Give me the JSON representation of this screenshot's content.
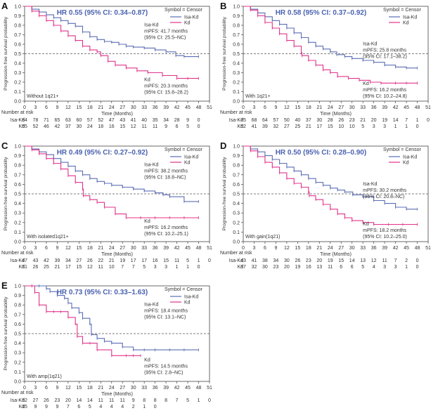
{
  "figure": {
    "risk_header": "Number at risk",
    "time_label": "Time (Months)",
    "y_label": "Progression-free survival probability",
    "symbol_label": "Symbol = Censor"
  },
  "colors": {
    "isa": "#5b6db4",
    "kd": "#e0338a",
    "hr": "#4a62b0",
    "ref": "#555555",
    "axis": "#444444"
  },
  "chart_data": [
    {
      "type": "line",
      "panel_label": "A",
      "hr_text": "HR 0.55 (95% CI: 0.34–0.87)",
      "subgroup": "Without 1q21+",
      "legend": [
        "Isa-Kd",
        "Kd"
      ],
      "x_ticks": [
        0,
        3,
        6,
        9,
        12,
        15,
        18,
        21,
        24,
        27,
        30,
        33,
        36,
        39,
        42,
        45,
        48,
        51
      ],
      "y_ticks": [
        0.0,
        0.1,
        0.2,
        0.3,
        0.4,
        0.5,
        0.6,
        0.7,
        0.8,
        0.9,
        1.0
      ],
      "xlim": [
        0,
        51
      ],
      "ylim": [
        0,
        1
      ],
      "ref_line": 0.5,
      "annotations": {
        "isa": {
          "lines": [
            "Isa-Kd",
            "mPFS: 41.7 months",
            "(95% CI: 25.5–NC)"
          ],
          "at": [
            33,
            0.79
          ]
        },
        "kd": {
          "lines": [
            "Kd",
            "mPFS: 20.3 months",
            "(95% CI: 15.8–28.2)"
          ],
          "at": [
            33,
            0.21
          ]
        }
      },
      "series": [
        {
          "name": "Isa-Kd",
          "x": [
            0,
            2,
            4,
            6,
            8,
            10,
            12,
            14,
            16,
            18,
            20,
            22,
            24,
            26,
            28,
            30,
            33,
            36,
            39,
            41.7,
            44,
            48
          ],
          "y": [
            1.0,
            0.97,
            0.94,
            0.91,
            0.88,
            0.85,
            0.82,
            0.79,
            0.73,
            0.68,
            0.65,
            0.63,
            0.62,
            0.6,
            0.58,
            0.57,
            0.56,
            0.54,
            0.52,
            0.48,
            0.47,
            0.47
          ]
        },
        {
          "name": "Kd",
          "x": [
            0,
            2,
            4,
            6,
            8,
            10,
            12,
            14,
            16,
            18,
            20,
            21,
            23,
            25,
            28,
            31,
            34,
            38,
            42,
            45,
            48
          ],
          "y": [
            1.0,
            0.95,
            0.9,
            0.85,
            0.8,
            0.74,
            0.69,
            0.64,
            0.58,
            0.54,
            0.52,
            0.48,
            0.42,
            0.38,
            0.35,
            0.32,
            0.3,
            0.27,
            0.24,
            0.24,
            0.24
          ]
        }
      ],
      "risk_table": [
        {
          "label": "Isa-Kd",
          "values": [
            84,
            78,
            71,
            65,
            63,
            60,
            57,
            52,
            47,
            43,
            41,
            40,
            35,
            34,
            28,
            9,
            0
          ]
        },
        {
          "label": "Kd",
          "values": [
            55,
            52,
            46,
            42,
            37,
            30,
            24,
            18,
            16,
            15,
            12,
            11,
            11,
            9,
            6,
            5,
            0
          ]
        }
      ]
    },
    {
      "type": "line",
      "panel_label": "B",
      "hr_text": "HR 0.58 (95% CI: 0.37–0.92)",
      "subgroup": "With 1q21+",
      "legend": [
        "Isa-Kd",
        "Kd"
      ],
      "x_ticks": [
        0,
        3,
        6,
        9,
        12,
        15,
        18,
        21,
        24,
        27,
        30,
        33,
        36,
        39,
        42,
        45,
        48,
        51
      ],
      "y_ticks": [
        0.0,
        0.1,
        0.2,
        0.3,
        0.4,
        0.5,
        0.6,
        0.7,
        0.8,
        0.9,
        1.0
      ],
      "xlim": [
        0,
        51
      ],
      "ylim": [
        0,
        1
      ],
      "ref_line": 0.5,
      "annotations": {
        "isa": {
          "lines": [
            "Isa-Kd",
            "mPFS: 25.8 months",
            "(95% CI: 17.1–38.2)"
          ],
          "at": [
            33,
            0.59
          ]
        },
        "kd": {
          "lines": [
            "Kd",
            "mPFS: 16.2 months",
            "(95% CI: 10.2–24.8)"
          ],
          "at": [
            33,
            0.17
          ]
        }
      },
      "series": [
        {
          "name": "Isa-Kd",
          "x": [
            0,
            2,
            4,
            6,
            8,
            10,
            12,
            14,
            16,
            18,
            20,
            22,
            24,
            25.8,
            28,
            30,
            33,
            36,
            39,
            42,
            45,
            48
          ],
          "y": [
            1.0,
            0.97,
            0.93,
            0.89,
            0.85,
            0.81,
            0.77,
            0.72,
            0.67,
            0.62,
            0.58,
            0.55,
            0.52,
            0.49,
            0.47,
            0.45,
            0.43,
            0.41,
            0.38,
            0.36,
            0.35,
            0.35
          ]
        },
        {
          "name": "Kd",
          "x": [
            0,
            2,
            4,
            6,
            8,
            10,
            12,
            14,
            16,
            16.2,
            18,
            20,
            22,
            24,
            26,
            29,
            32,
            35,
            38,
            42,
            45,
            48
          ],
          "y": [
            1.0,
            0.96,
            0.9,
            0.83,
            0.77,
            0.71,
            0.64,
            0.58,
            0.51,
            0.48,
            0.43,
            0.38,
            0.33,
            0.3,
            0.26,
            0.24,
            0.22,
            0.2,
            0.19,
            0.19,
            0.19,
            0.19
          ]
        }
      ],
      "risk_table": [
        {
          "label": "Isa-Kd",
          "values": [
            75,
            68,
            64,
            57,
            50,
            40,
            37,
            30,
            28,
            26,
            23,
            21,
            20,
            19,
            14,
            7,
            1,
            0
          ]
        },
        {
          "label": "Kd",
          "values": [
            52,
            41,
            39,
            32,
            27,
            25,
            21,
            17,
            15,
            10,
            10,
            5,
            3,
            3,
            1,
            1,
            0
          ]
        }
      ]
    },
    {
      "type": "line",
      "panel_label": "C",
      "hr_text": "HR 0.49 (95% CI: 0.27–0.92)",
      "subgroup": "With isolated1q21+",
      "legend": [
        "Isa-Kd",
        "Kd"
      ],
      "x_ticks": [
        0,
        3,
        6,
        9,
        12,
        15,
        18,
        21,
        24,
        27,
        30,
        33,
        36,
        39,
        42,
        45,
        48,
        51
      ],
      "y_ticks": [
        0.0,
        0.1,
        0.2,
        0.3,
        0.4,
        0.5,
        0.6,
        0.7,
        0.8,
        0.9,
        1.0
      ],
      "xlim": [
        0,
        51
      ],
      "ylim": [
        0,
        1
      ],
      "ref_line": 0.5,
      "annotations": {
        "isa": {
          "lines": [
            "Isa-Kd",
            "mPFS: 38.2 months",
            "(95% CI: 18.8–NC)"
          ],
          "at": [
            33,
            0.79
          ]
        },
        "kd": {
          "lines": [
            "Kd",
            "mPFS: 16.2 months",
            "(95% CI: 10.2–25.1)"
          ],
          "at": [
            33,
            0.2
          ]
        }
      },
      "series": [
        {
          "name": "Isa-Kd",
          "x": [
            0,
            2,
            4,
            6,
            8,
            10,
            12,
            14,
            16,
            18,
            20,
            22,
            24,
            27,
            30,
            33,
            36,
            38.2,
            40,
            44,
            48
          ],
          "y": [
            1.0,
            0.97,
            0.94,
            0.91,
            0.87,
            0.83,
            0.79,
            0.74,
            0.7,
            0.66,
            0.63,
            0.61,
            0.59,
            0.57,
            0.55,
            0.53,
            0.51,
            0.49,
            0.47,
            0.42,
            0.42
          ]
        },
        {
          "name": "Kd",
          "x": [
            0,
            2,
            4,
            6,
            8,
            10,
            12,
            14,
            16,
            16.2,
            18,
            20,
            22,
            25,
            28,
            32,
            36,
            40,
            44,
            48
          ],
          "y": [
            1.0,
            0.96,
            0.92,
            0.87,
            0.82,
            0.76,
            0.69,
            0.62,
            0.55,
            0.48,
            0.44,
            0.41,
            0.36,
            0.29,
            0.25,
            0.25,
            0.25,
            0.25,
            0.25,
            0.25
          ]
        }
      ],
      "risk_table": [
        {
          "label": "Isa-Kd",
          "values": [
            47,
            43,
            42,
            39,
            34,
            27,
            26,
            22,
            21,
            19,
            17,
            17,
            16,
            15,
            11,
            5,
            1,
            0
          ]
        },
        {
          "label": "Kd",
          "values": [
            31,
            26,
            25,
            21,
            17,
            15,
            12,
            11,
            10,
            7,
            7,
            5,
            3,
            3,
            1,
            1,
            0
          ]
        }
      ]
    },
    {
      "type": "line",
      "panel_label": "D",
      "hr_text": "HR 0.50 (95% CI: 0.28–0.90)",
      "subgroup": "With gain(1q21)",
      "legend": [
        "Isa-Kd",
        "Kd"
      ],
      "x_ticks": [
        0,
        3,
        6,
        9,
        12,
        15,
        18,
        21,
        24,
        27,
        30,
        33,
        36,
        39,
        42,
        45,
        48,
        51
      ],
      "y_ticks": [
        0.0,
        0.1,
        0.2,
        0.3,
        0.4,
        0.5,
        0.6,
        0.7,
        0.8,
        0.9,
        1.0
      ],
      "xlim": [
        0,
        51
      ],
      "ylim": [
        0,
        1
      ],
      "ref_line": 0.5,
      "annotations": {
        "isa": {
          "lines": [
            "Isa-Kd",
            "mPFS: 30.2 months",
            "(95% CI: 20.8–NC)"
          ],
          "at": [
            33,
            0.59
          ]
        },
        "kd": {
          "lines": [
            "Kd",
            "mPFS: 18.2 months",
            "(95% CI: 10.2–25.0)"
          ],
          "at": [
            33,
            0.17
          ]
        }
      },
      "series": [
        {
          "name": "Isa-Kd",
          "x": [
            0,
            2,
            4,
            6,
            8,
            10,
            12,
            14,
            16,
            18,
            20,
            22,
            24,
            26,
            28,
            30.2,
            33,
            36,
            39,
            42,
            45,
            48
          ],
          "y": [
            1.0,
            0.97,
            0.94,
            0.9,
            0.86,
            0.82,
            0.78,
            0.74,
            0.7,
            0.66,
            0.62,
            0.59,
            0.56,
            0.54,
            0.52,
            0.49,
            0.47,
            0.43,
            0.4,
            0.36,
            0.34,
            0.34
          ]
        },
        {
          "name": "Kd",
          "x": [
            0,
            2,
            4,
            6,
            8,
            10,
            12,
            14,
            16,
            18,
            18.2,
            20,
            22,
            24,
            26,
            28,
            30,
            33,
            36,
            40,
            44,
            48
          ],
          "y": [
            1.0,
            0.95,
            0.89,
            0.83,
            0.78,
            0.72,
            0.66,
            0.61,
            0.57,
            0.52,
            0.48,
            0.44,
            0.39,
            0.34,
            0.29,
            0.25,
            0.22,
            0.2,
            0.18,
            0.18,
            0.18,
            0.18
          ]
        }
      ],
      "risk_table": [
        {
          "label": "Isa-Kd",
          "values": [
            43,
            41,
            38,
            34,
            30,
            26,
            23,
            20,
            19,
            15,
            14,
            13,
            12,
            11,
            7,
            2,
            0
          ]
        },
        {
          "label": "Kd",
          "values": [
            37,
            32,
            30,
            23,
            20,
            19,
            16,
            13,
            11,
            6,
            6,
            5,
            4,
            3,
            3,
            1,
            0
          ]
        }
      ]
    },
    {
      "type": "line",
      "panel_label": "E",
      "hr_text": "HR 0.73 (95% CI: 0.33–1.63)",
      "subgroup": "With amp(1q21)",
      "legend": [
        "Isa-Kd",
        "Kd"
      ],
      "x_ticks": [
        0,
        3,
        6,
        9,
        12,
        15,
        18,
        21,
        24,
        27,
        30,
        33,
        36,
        39,
        42,
        45,
        48,
        51
      ],
      "y_ticks": [
        0.0,
        0.1,
        0.2,
        0.3,
        0.4,
        0.5,
        0.6,
        0.7,
        0.8,
        0.9,
        1.0
      ],
      "xlim": [
        0,
        51
      ],
      "ylim": [
        0,
        1
      ],
      "ref_line": 0.5,
      "annotations": {
        "isa": {
          "lines": [
            "Isa-Kd",
            "mPFS: 18.4 months",
            "(95% CI: 13.1–NC)"
          ],
          "at": [
            33,
            0.79
          ]
        },
        "kd": {
          "lines": [
            "Kd",
            "mPFS: 14.5 months",
            "(95% CI: 2.8–NC)"
          ],
          "at": [
            33,
            0.21
          ]
        }
      },
      "series": [
        {
          "name": "Isa-Kd",
          "x": [
            0,
            2,
            4,
            6,
            7,
            9,
            11,
            12,
            13,
            15,
            16,
            18,
            18.4,
            20,
            22,
            24,
            27,
            30,
            33,
            36,
            40,
            44,
            48
          ],
          "y": [
            1.0,
            1.0,
            1.0,
            0.97,
            0.94,
            0.9,
            0.87,
            0.82,
            0.77,
            0.72,
            0.66,
            0.6,
            0.49,
            0.45,
            0.42,
            0.4,
            0.36,
            0.33,
            0.33,
            0.33,
            0.33,
            0.33,
            0.33
          ]
        },
        {
          "name": "Kd",
          "x": [
            0,
            2,
            2.8,
            4,
            6,
            8,
            10,
            12,
            14,
            14.5,
            16,
            18,
            20,
            24,
            28,
            30,
            32
          ],
          "y": [
            1.0,
            1.0,
            0.93,
            0.8,
            0.73,
            0.73,
            0.73,
            0.67,
            0.6,
            0.47,
            0.4,
            0.4,
            0.33,
            0.27,
            0.27,
            0.27,
            0.27
          ]
        }
      ],
      "risk_table": [
        {
          "label": "Isa-Kd",
          "values": [
            32,
            27,
            26,
            23,
            20,
            14,
            14,
            11,
            11,
            11,
            9,
            8,
            8,
            8,
            7,
            5,
            1,
            0
          ]
        },
        {
          "label": "Kd",
          "values": [
            15,
            9,
            9,
            9,
            7,
            6,
            5,
            4,
            4,
            4,
            2,
            1,
            0
          ]
        }
      ]
    }
  ]
}
